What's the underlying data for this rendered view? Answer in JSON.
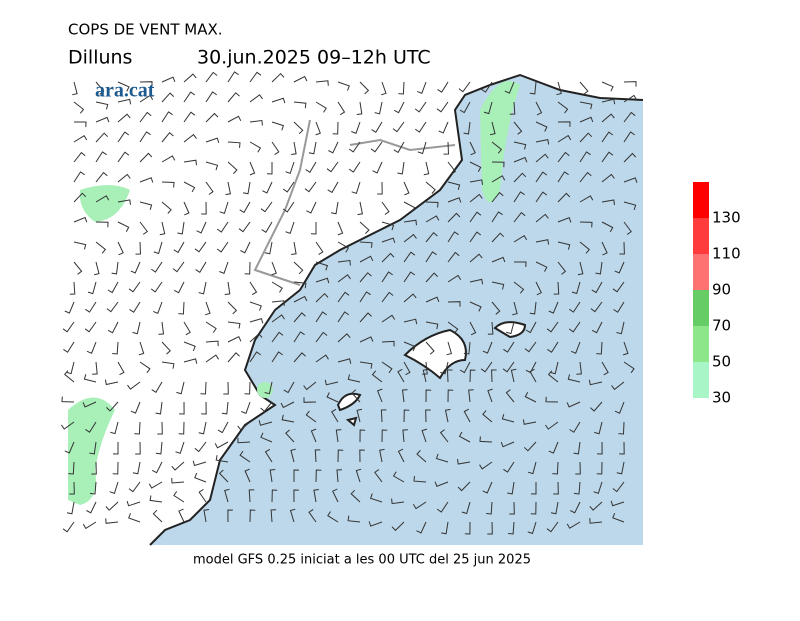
{
  "header": {
    "title": "COPS DE VENT MAX.",
    "day": "Dilluns",
    "period": "30.jun.2025 09–12h UTC",
    "logo": "ara.cat"
  },
  "footer": "model GFS 0.25 iniciat a les 00 UTC del 25 jun 2025",
  "legend": {
    "ticks": [
      30,
      50,
      70,
      90,
      110,
      130
    ],
    "colors": [
      "#a8f5c8",
      "#8ee68a",
      "#66cc66",
      "#ff7272",
      "#ff3b3b",
      "#ff0000"
    ]
  }
}
